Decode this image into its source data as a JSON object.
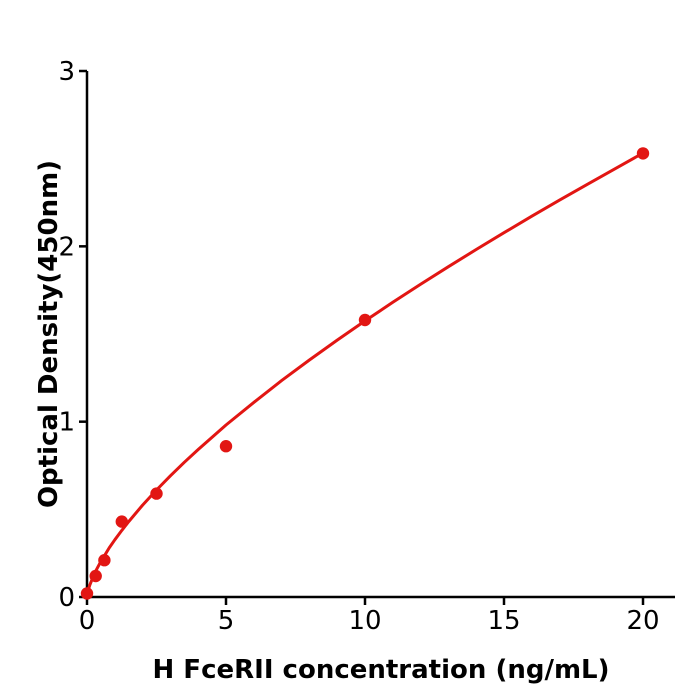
{
  "figure": {
    "background": "#ffffff",
    "axis_color": "#000000",
    "text_color": "#000000"
  },
  "chart_data": {
    "type": "scatter",
    "title": "",
    "xlabel": "H  FceRII concentration (ng/mL)",
    "ylabel": "Optical Density(450nm)",
    "xlim": [
      0,
      21.2
    ],
    "ylim": [
      0,
      3
    ],
    "xticks": [
      0,
      5,
      10,
      15,
      20
    ],
    "yticks": [
      0,
      1,
      2,
      3
    ],
    "grid": false,
    "legend": false,
    "accent_color": "#e21613",
    "series": [
      {
        "name": "measured-points",
        "type": "scatter",
        "color": "#e21613",
        "x": [
          0,
          0.313,
          0.625,
          1.25,
          2.5,
          5,
          10,
          20
        ],
        "y": [
          0.02,
          0.12,
          0.21,
          0.43,
          0.59,
          0.86,
          1.58,
          2.53
        ]
      },
      {
        "name": "fit-curve",
        "type": "line",
        "color": "#e21613",
        "points": [
          [
            0,
            0
          ],
          [
            0.05,
            0.042
          ],
          [
            0.1,
            0.068
          ],
          [
            0.2,
            0.108
          ],
          [
            0.313,
            0.148
          ],
          [
            0.45,
            0.189
          ],
          [
            0.625,
            0.235
          ],
          [
            0.8,
            0.28
          ],
          [
            1,
            0.326
          ],
          [
            1.25,
            0.38
          ],
          [
            1.5,
            0.43
          ],
          [
            2,
            0.524
          ],
          [
            2.5,
            0.61
          ],
          [
            3,
            0.691
          ],
          [
            3.5,
            0.768
          ],
          [
            4,
            0.841
          ],
          [
            5,
            0.981
          ],
          [
            6,
            1.11
          ],
          [
            7,
            1.234
          ],
          [
            8,
            1.352
          ],
          [
            9,
            1.465
          ],
          [
            10,
            1.575
          ],
          [
            11,
            1.681
          ],
          [
            12,
            1.784
          ],
          [
            13,
            1.884
          ],
          [
            14,
            1.982
          ],
          [
            15,
            2.078
          ],
          [
            16,
            2.172
          ],
          [
            17,
            2.264
          ],
          [
            18,
            2.354
          ],
          [
            19,
            2.443
          ],
          [
            20,
            2.532
          ]
        ]
      }
    ]
  }
}
